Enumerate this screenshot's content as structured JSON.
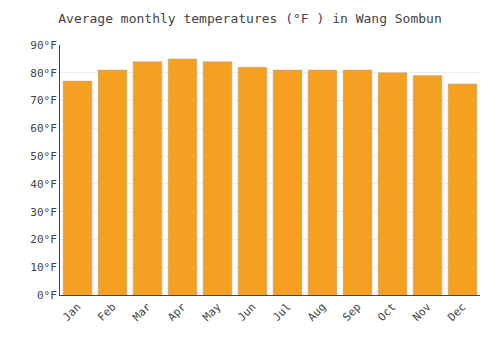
{
  "chart_data": {
    "type": "bar",
    "title": "Average monthly temperatures (°F ) in Wang Sombun",
    "categories": [
      "Jan",
      "Feb",
      "Mar",
      "Apr",
      "May",
      "Jun",
      "Jul",
      "Aug",
      "Sep",
      "Oct",
      "Nov",
      "Dec"
    ],
    "values": [
      77,
      81,
      84,
      85,
      84,
      82,
      81,
      81,
      81,
      80,
      79,
      76
    ],
    "color": "#F5A020",
    "ylim": [
      0,
      90
    ],
    "yticks": [
      {
        "value": 0,
        "label": "0°F"
      },
      {
        "value": 10,
        "label": "10°F"
      },
      {
        "value": 20,
        "label": "20°F"
      },
      {
        "value": 30,
        "label": "30°F"
      },
      {
        "value": 40,
        "label": "40°F"
      },
      {
        "value": 50,
        "label": "50°F"
      },
      {
        "value": 60,
        "label": "60°F"
      },
      {
        "value": 70,
        "label": "70°F"
      },
      {
        "value": 80,
        "label": "80°F"
      },
      {
        "value": 90,
        "label": "90°F"
      }
    ],
    "grid": true
  }
}
